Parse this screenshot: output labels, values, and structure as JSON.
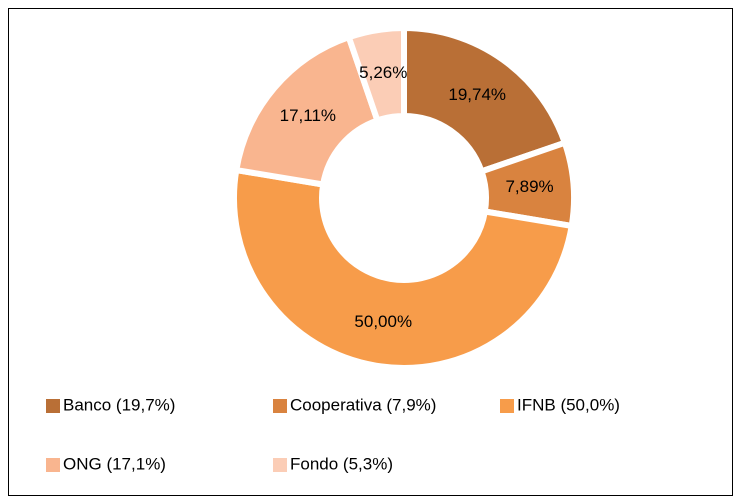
{
  "chart_data": {
    "type": "donut",
    "categories": [
      "Banco (19,7%)",
      "Cooperativa (7,9%)",
      "IFNB (50,0%)",
      "ONG (17,1%)",
      "Fondo (5,3%)"
    ],
    "values": [
      19.74,
      7.89,
      50.0,
      17.11,
      5.26
    ],
    "value_labels": [
      "19,74%",
      "7,89%",
      "50,00%",
      "17,11%",
      "5,26%"
    ],
    "colors": [
      "#b96f36",
      "#d9833f",
      "#f79c4a",
      "#f9b58f",
      "#fbcdb6"
    ],
    "legend": "bottom"
  }
}
